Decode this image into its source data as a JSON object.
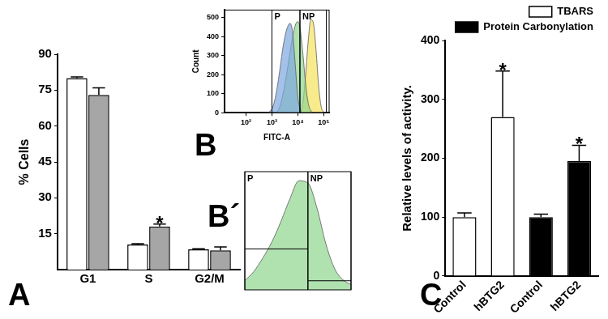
{
  "chart_data": [
    {
      "panel": "A",
      "type": "bar",
      "categories": [
        "G1",
        "S",
        "G2/M"
      ],
      "series": [
        {
          "color": "#ffffff",
          "values": [
            80,
            10.5,
            8.5
          ],
          "errors": [
            0.5,
            0.3,
            0.2
          ]
        },
        {
          "color": "#a6a6a6",
          "values": [
            73,
            18,
            8
          ],
          "errors": [
            3,
            1,
            1.5
          ]
        }
      ],
      "y_label": "% Cells",
      "ylim": [
        0,
        90
      ],
      "yticks": [
        15,
        30,
        45,
        60,
        75,
        90
      ],
      "grid": false,
      "annotations": [
        {
          "text": "*",
          "x": 1
        }
      ]
    },
    {
      "panel": "B",
      "type": "area",
      "x_label": "FITC-A",
      "y_label": "Count",
      "log": "x",
      "x": [
        631,
        794,
        1000,
        1259,
        1585,
        1995,
        2512,
        3162,
        3981,
        5012,
        6310,
        7943,
        10000,
        12589,
        15849,
        19953,
        25119,
        31623,
        39811,
        50119,
        63096,
        79433,
        100000
      ],
      "series": [
        {
          "color": "#7ea6e0",
          "values": [
            0,
            5,
            20,
            60,
            130,
            220,
            320,
            400,
            450,
            470,
            420,
            250,
            80,
            15,
            0,
            0,
            0,
            0,
            0,
            0,
            0,
            0,
            0
          ]
        },
        {
          "color": "#8fd68f",
          "values": [
            0,
            0,
            0,
            0,
            5,
            30,
            80,
            150,
            230,
            320,
            400,
            460,
            480,
            430,
            300,
            150,
            50,
            10,
            0,
            0,
            0,
            0,
            0
          ]
        },
        {
          "color": "#f5e35c",
          "values": [
            0,
            0,
            0,
            0,
            0,
            0,
            0,
            0,
            0,
            0,
            0,
            0,
            0,
            10,
            60,
            200,
            380,
            490,
            470,
            330,
            140,
            30,
            2
          ]
        }
      ],
      "xlim": [
        15,
        160000
      ],
      "xticks": [
        {
          "value": 100,
          "label": "10²"
        },
        {
          "value": 1000,
          "label": "10³"
        },
        {
          "value": 10000,
          "label": "10⁴"
        },
        {
          "value": 100000,
          "label": "10⁵"
        }
      ],
      "ylim": [
        0,
        540
      ],
      "yticks": [
        0,
        100,
        200,
        300,
        400,
        500
      ],
      "grid": false,
      "gates": [
        {
          "label": "P",
          "range": [
            1000,
            12000
          ]
        },
        {
          "label": "NP",
          "range": [
            12000,
            125000
          ]
        }
      ]
    },
    {
      "panel": "B´",
      "type": "area",
      "log": "x",
      "tick_labels": false,
      "x": [
        1995,
        2512,
        3162,
        3981,
        5012,
        6310,
        7943,
        10000,
        12589,
        15849,
        19953,
        25119,
        31623
      ],
      "series": [
        {
          "color": "#8fd68f",
          "values": [
            40,
            80,
            140,
            210,
            300,
            400,
            480,
            470,
            360,
            200,
            90,
            40,
            20
          ]
        }
      ],
      "xlim": [
        2000,
        30000
      ],
      "ylim": [
        0,
        520
      ],
      "grid": false,
      "gates": [
        {
          "label": "P",
          "range": [
            2000,
            10000
          ],
          "level": 180
        },
        {
          "label": "NP",
          "range": [
            10000,
            30000
          ],
          "level": 40
        }
      ]
    },
    {
      "panel": "C",
      "type": "bar",
      "categories": [
        "Control",
        "hBTG2",
        "Control",
        "hBTG2"
      ],
      "series": [
        {
          "name": "TBARS",
          "color": "#ffffff",
          "values": [
            100,
            270,
            null,
            null
          ],
          "errors": [
            7,
            78,
            null,
            null
          ]
        },
        {
          "name": "Protein Carbonylation",
          "color": "#000000",
          "values": [
            null,
            null,
            100,
            195
          ],
          "errors": [
            null,
            null,
            5,
            27
          ]
        }
      ],
      "y_label": "Relative levels of activity.",
      "ylim": [
        0,
        400
      ],
      "yticks": [
        0,
        100,
        200,
        300,
        400
      ],
      "grid": false,
      "legend": "top right",
      "annotations": [
        {
          "text": "*",
          "x": 1
        },
        {
          "text": "*",
          "x": 3
        }
      ]
    }
  ]
}
